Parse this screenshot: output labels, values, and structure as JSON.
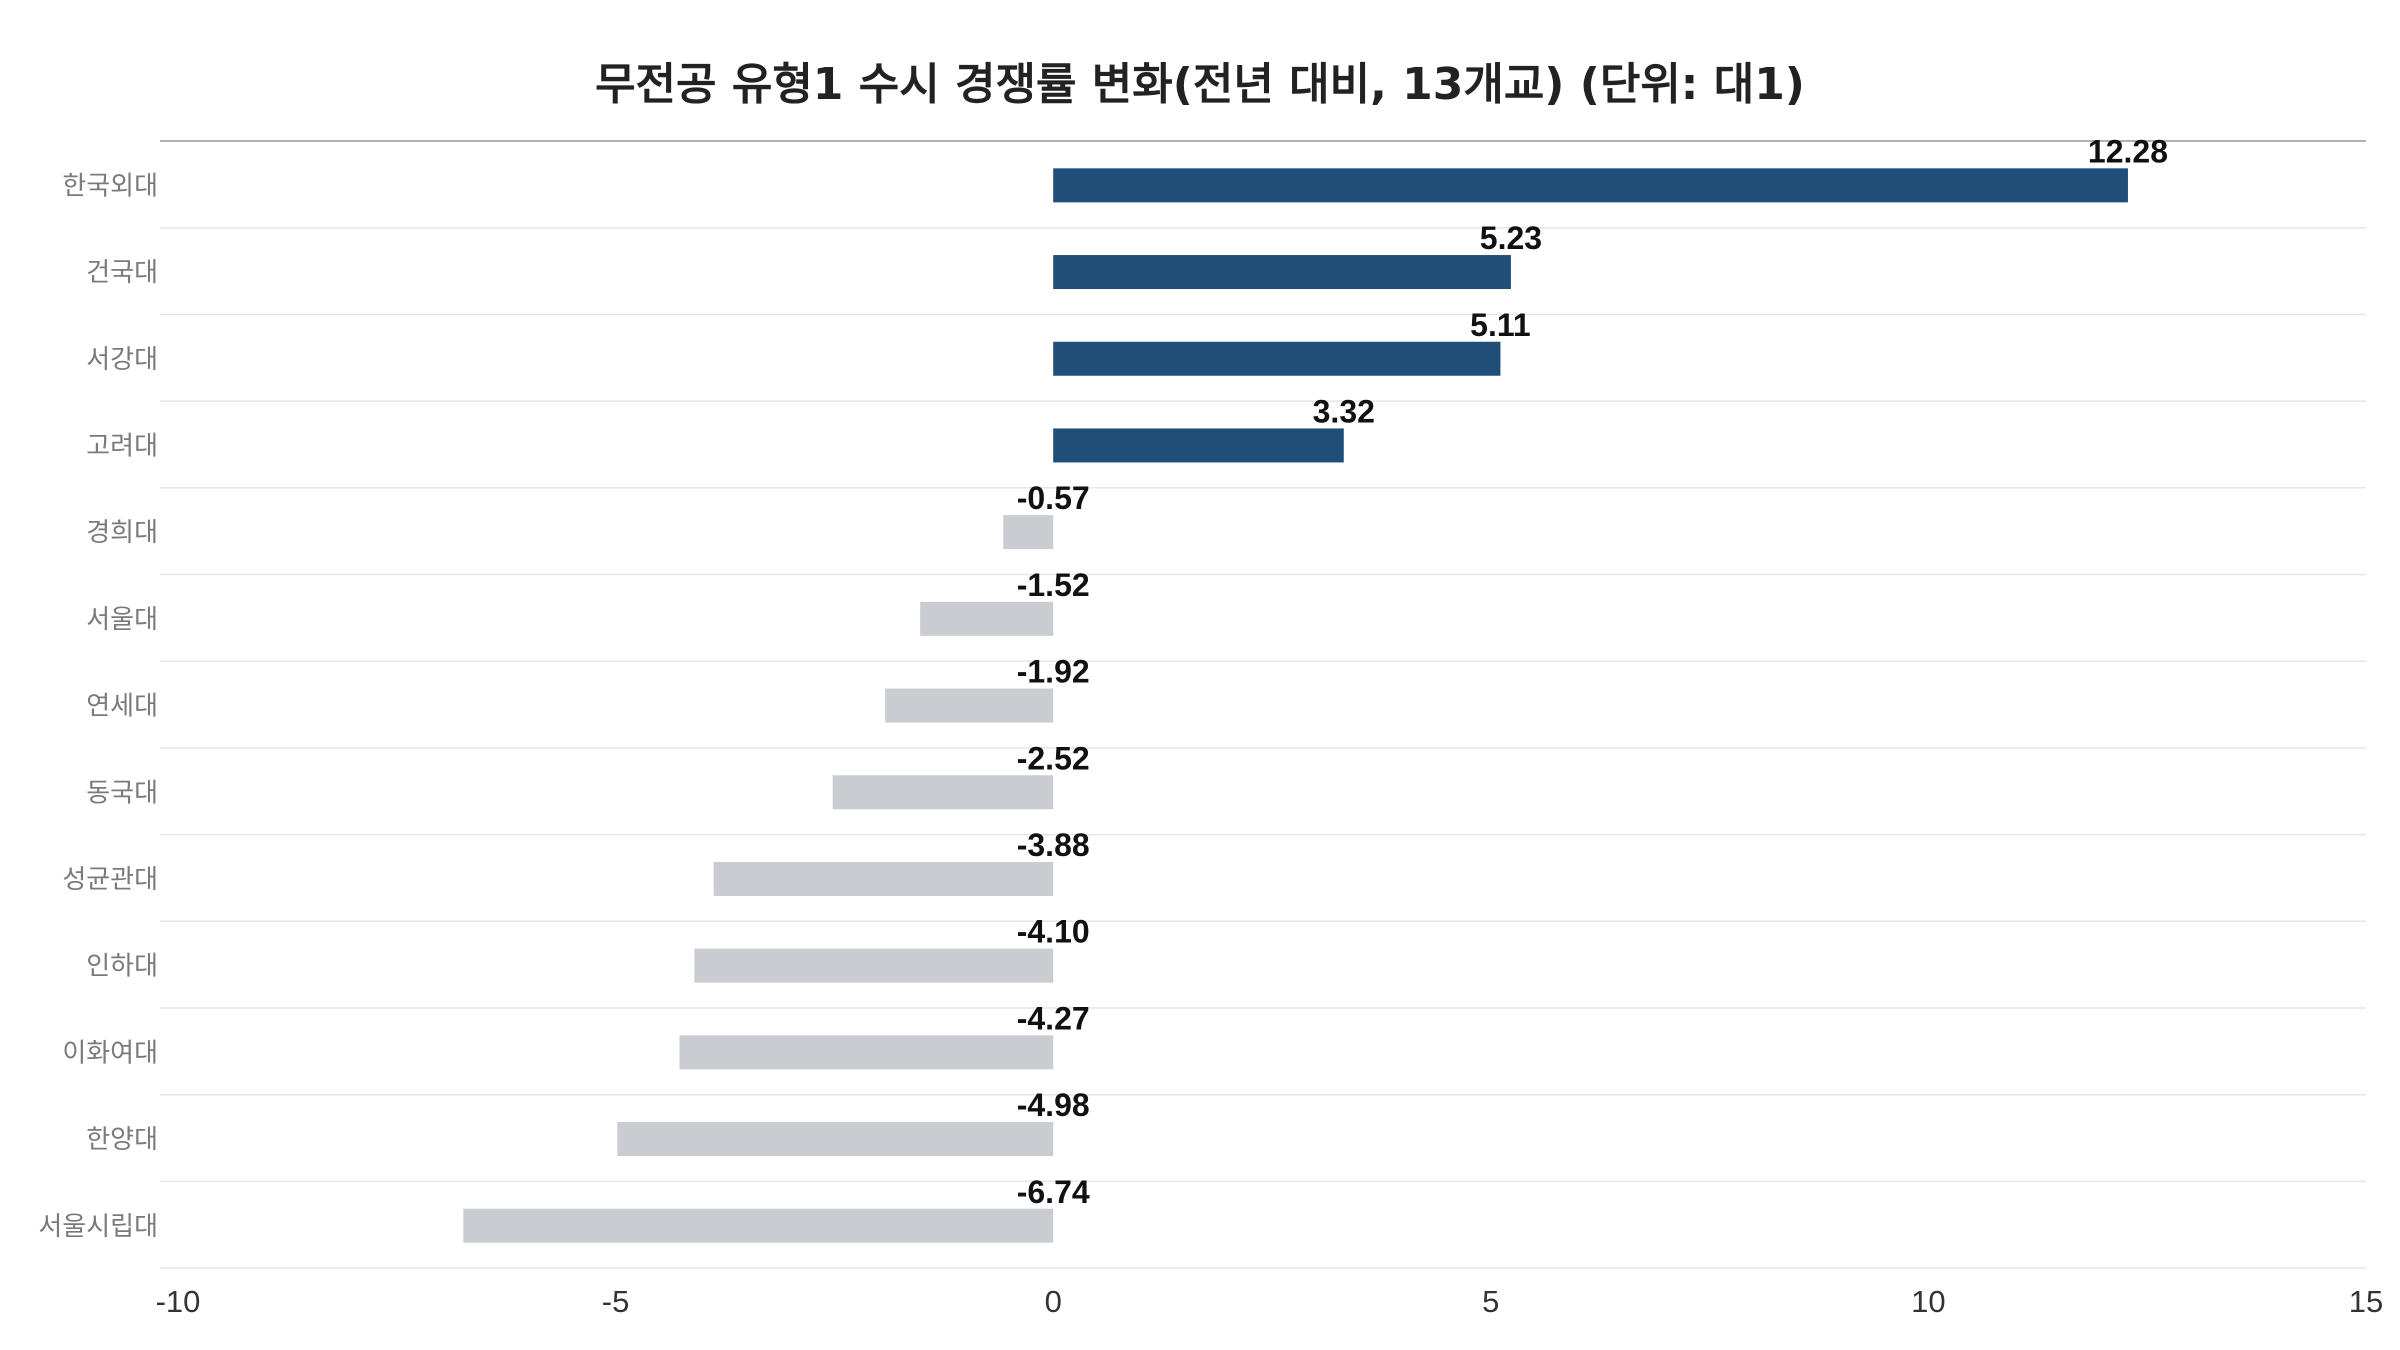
{
  "chart_data": {
    "type": "bar",
    "orientation": "horizontal",
    "title": "무전공 유형1 수시 경쟁률 변화(전년 대비, 13개교) (단위: 대1)",
    "xlabel": "",
    "ylabel": "",
    "xlim": [
      -10,
      15
    ],
    "xticks": [
      -10,
      -5,
      0,
      5,
      10,
      15
    ],
    "xtick_labels": [
      "-10",
      "-5",
      "0",
      "5",
      "10",
      "15"
    ],
    "categories": [
      "한국외대",
      "건국대",
      "서강대",
      "고려대",
      "경희대",
      "서울대",
      "연세대",
      "동국대",
      "성균관대",
      "인하대",
      "이화여대",
      "한양대",
      "서울시립대"
    ],
    "values": [
      12.28,
      5.23,
      5.11,
      3.32,
      -0.57,
      -1.52,
      -1.92,
      -2.52,
      -3.88,
      -4.1,
      -4.27,
      -4.98,
      -6.74
    ],
    "value_labels": [
      "12.28",
      "5.23",
      "5.11",
      "3.32",
      "-0.57",
      "-1.52",
      "-1.92",
      "-2.52",
      "-3.88",
      "-4.10",
      "-4.27",
      "-4.98",
      "-6.74"
    ],
    "colors": {
      "positive": "#1f4e79",
      "negative": "#c9ccd1"
    },
    "grid": "horizontal row separators",
    "legend": "none"
  }
}
